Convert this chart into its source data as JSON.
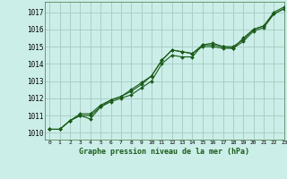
{
  "title": "Graphe pression niveau de la mer (hPa)",
  "bg_color": "#cceee8",
  "grid_color": "#aacfc8",
  "line_color": "#1a5c1a",
  "marker_color": "#1a5c1a",
  "xlim": [
    -0.5,
    23
  ],
  "ylim": [
    1009.6,
    1017.6
  ],
  "xticks": [
    0,
    1,
    2,
    3,
    4,
    5,
    6,
    7,
    8,
    9,
    10,
    11,
    12,
    13,
    14,
    15,
    16,
    17,
    18,
    19,
    20,
    21,
    22,
    23
  ],
  "yticks": [
    1010,
    1011,
    1012,
    1013,
    1014,
    1015,
    1016,
    1017
  ],
  "series": [
    [
      1010.2,
      1010.2,
      1010.7,
      1011.0,
      1011.0,
      1011.5,
      1011.8,
      1012.0,
      1012.2,
      1012.6,
      1013.0,
      1014.0,
      1014.5,
      1014.4,
      1014.4,
      1015.1,
      1015.1,
      1015.0,
      1014.9,
      1015.3,
      1015.9,
      1016.1,
      1016.9,
      1017.2
    ],
    [
      1010.2,
      1010.2,
      1010.7,
      1011.0,
      1010.8,
      1011.5,
      1011.9,
      1012.1,
      1012.4,
      1012.8,
      1013.3,
      1014.2,
      1014.8,
      1014.7,
      1014.6,
      1015.0,
      1015.0,
      1014.9,
      1014.9,
      1015.5,
      1016.0,
      1016.2,
      1016.9,
      1017.2
    ],
    [
      1010.2,
      1010.2,
      1010.7,
      1011.1,
      1011.1,
      1011.6,
      1011.9,
      1012.1,
      1012.5,
      1012.9,
      1013.3,
      1014.2,
      1014.8,
      1014.7,
      1014.6,
      1015.1,
      1015.2,
      1015.0,
      1015.0,
      1015.4,
      1016.0,
      1016.2,
      1017.0,
      1017.3
    ]
  ]
}
